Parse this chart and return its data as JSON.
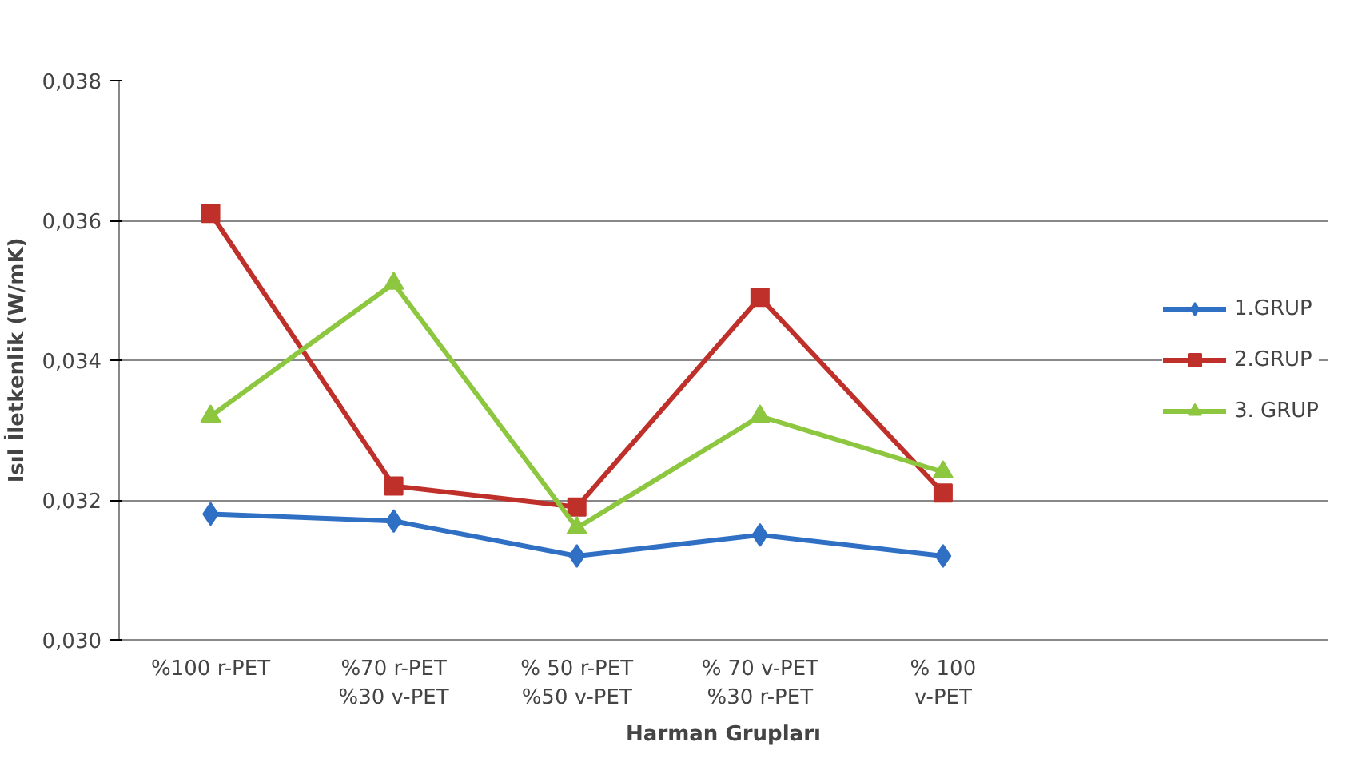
{
  "chart_data": {
    "type": "line",
    "xlabel": "Harman Grupları",
    "ylabel": "Isıl İletkenlik (W/mK)",
    "categories": [
      "%100 r-PET",
      "%70 r-PET %30 v-PET",
      "% 50 r-PET %50 v-PET",
      "% 70 v-PET %30 r-PET",
      "% 100 v-PET"
    ],
    "series": [
      {
        "name": "1.GRUP",
        "color": "#2f6fc4",
        "marker": "diamond",
        "values": [
          0.0318,
          0.0317,
          0.0312,
          0.0315,
          0.0312
        ]
      },
      {
        "name": "2.GRUP",
        "color": "#c0302a",
        "marker": "square",
        "values": [
          0.0361,
          0.0322,
          0.0319,
          0.0349,
          0.0321
        ]
      },
      {
        "name": "3. GRUP",
        "color": "#8dc63f",
        "marker": "triangle",
        "values": [
          0.0332,
          0.0351,
          0.0316,
          0.0332,
          0.0324
        ]
      }
    ],
    "ylim": [
      0.03,
      0.038
    ],
    "yticks": [
      {
        "value": 0.03,
        "label": "0,030"
      },
      {
        "value": 0.032,
        "label": "0,032"
      },
      {
        "value": 0.034,
        "label": "0,034"
      },
      {
        "value": 0.036,
        "label": "0,036"
      },
      {
        "value": 0.038,
        "label": "0,038"
      }
    ],
    "grid": "y",
    "legend": "right",
    "line_style": "solid"
  }
}
